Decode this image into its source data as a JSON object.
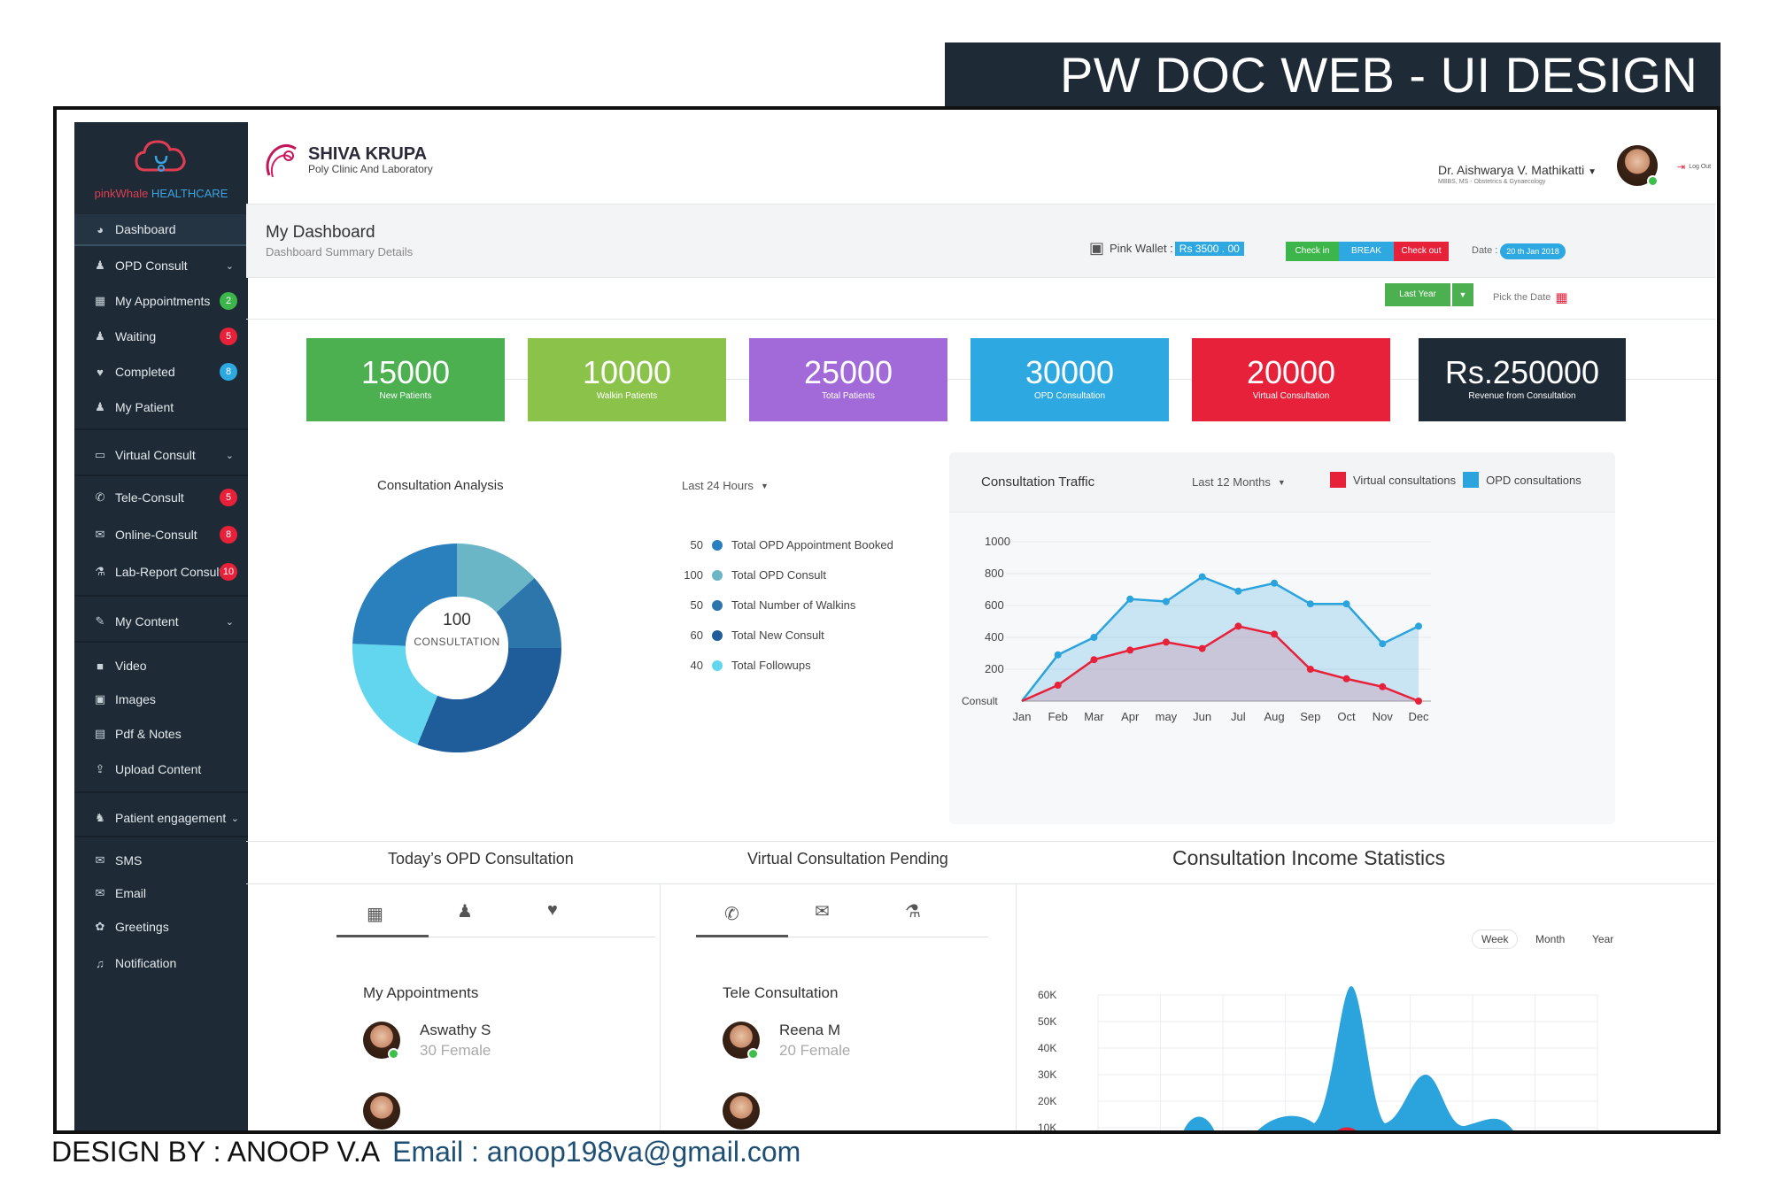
{
  "banner_title": "PW DOC WEB -  UI DESIGN",
  "footer": {
    "designer": "DESIGN BY : ANOOP V.A",
    "email": "Email : anoop198va@gmail.com"
  },
  "brand": {
    "name_pink": "pinkWhale",
    "name_blue": " HEALTHCARE"
  },
  "sidebar": {
    "dashboard": "Dashboard",
    "opd_consult": "OPD Consult",
    "my_appointments": "My Appointments",
    "my_appointments_badge": "2",
    "waiting": "Waiting",
    "waiting_badge": "5",
    "completed": "Completed",
    "completed_badge": "8",
    "my_patient": "My Patient",
    "virtual_consult": "Virtual Consult",
    "tele_consult": "Tele-Consult",
    "tele_consult_badge": "5",
    "online_consult": "Online-Consult",
    "online_consult_badge": "8",
    "lab_report": "Lab-Report Consult",
    "lab_report_badge": "10",
    "my_content": "My Content",
    "video": "Video",
    "images": "Images",
    "pdf_notes": "Pdf & Notes",
    "upload_content": "Upload Content",
    "patient_engagement": "Patient engagement",
    "sms": "SMS",
    "email": "Email",
    "greetings": "Greetings",
    "notification": "Notification"
  },
  "header": {
    "clinic_name": "SHIVA KRUPA",
    "clinic_sub": "Poly Clinic And Laboratory",
    "doctor_name": "Dr. Aishwarya V. Mathikatti",
    "doctor_sub": "MBBS, MS - Obstetrics & Gynaecology",
    "logout": "Log Out"
  },
  "subheader": {
    "title": "My Dashboard",
    "subtitle": "Dashboard Summary Details",
    "wallet_label": "Pink Wallet :",
    "wallet_value": "Rs 3500 . 00",
    "check_in": "Check in",
    "break": "BREAK",
    "check_out": "Check out",
    "date_label": "Date :",
    "date_value": "20 th Jan 2018"
  },
  "filter": {
    "range": "Last Year",
    "pick_date": "Pick the Date"
  },
  "colors": {
    "green": "#4caf50",
    "lightgreen": "#8bc34a",
    "purple": "#a26ad8",
    "blue": "#2ea8e0",
    "red": "#e8213a",
    "dark": "#1e2a36",
    "opd_blue": "#2ba3dd",
    "virtual_red": "#e8213a"
  },
  "stats": [
    {
      "value": "15000",
      "label": "New Patients"
    },
    {
      "value": "10000",
      "label": "Walkin Patients"
    },
    {
      "value": "25000",
      "label": "Total Patients"
    },
    {
      "value": "30000",
      "label": "OPD Consultation"
    },
    {
      "value": "20000",
      "label": "Virtual Consultation"
    },
    {
      "value": "Rs.250000",
      "label": "Revenue from Consultation"
    }
  ],
  "analysis": {
    "title": "Consultation Analysis",
    "range": "Last 24 Hours",
    "center_value": "100",
    "center_label": "CONSULTATION",
    "legend": [
      {
        "value": "50",
        "label": "Total OPD Appointment Booked",
        "color": "#2a7fbd"
      },
      {
        "value": "100",
        "label": "Total OPD Consult",
        "color": "#6ab6c6"
      },
      {
        "value": "50",
        "label": "Total Number of Walkins",
        "color": "#2d76ac"
      },
      {
        "value": "60",
        "label": "Total New Consult",
        "color": "#1f5c9a"
      },
      {
        "value": "40",
        "label": "Total Followups",
        "color": "#62d6ee"
      }
    ]
  },
  "traffic": {
    "title": "Consultation Traffic",
    "range": "Last 12 Months",
    "legend_virtual": "Virtual consultations",
    "legend_opd": "OPD consultations",
    "y_bottom_label": "Consult"
  },
  "chart_data": [
    {
      "type": "area",
      "title": "Consultation Traffic",
      "categories": [
        "Jan",
        "Feb",
        "Mar",
        "Apr",
        "may",
        "Jun",
        "Jul",
        "Aug",
        "Sep",
        "Oct",
        "Nov",
        "Dec"
      ],
      "y_ticks": [
        "1000",
        "800",
        "600",
        "400",
        "200"
      ],
      "ylim": [
        0,
        1000
      ],
      "series": [
        {
          "name": "OPD consultations",
          "values": [
            0,
            290,
            400,
            640,
            625,
            780,
            690,
            740,
            610,
            610,
            360,
            470
          ]
        },
        {
          "name": "Virtual consultations",
          "values": [
            0,
            100,
            260,
            320,
            370,
            330,
            470,
            420,
            200,
            140,
            90,
            0
          ]
        }
      ]
    },
    {
      "type": "area",
      "title": "Consultation Income Statistics",
      "y_ticks": [
        "60K",
        "50K",
        "40K",
        "30K",
        "20K",
        "10K"
      ],
      "ylim": [
        0,
        60000
      ],
      "range_options": [
        "Week",
        "Month",
        "Year"
      ]
    }
  ],
  "bottom": {
    "opd_title": "Today’s OPD Consultation",
    "virtual_title": "Virtual Consultation Pending",
    "income_title": "Consultation Income Statistics",
    "my_appointments": "My Appointments",
    "tele_consultation": "Tele Consultation",
    "patient1_name": "Aswathy S",
    "patient1_sub": "30 Female",
    "patient2_name": "Reena M",
    "patient2_sub": "20 Female",
    "week": "Week",
    "month": "Month",
    "year": "Year"
  }
}
